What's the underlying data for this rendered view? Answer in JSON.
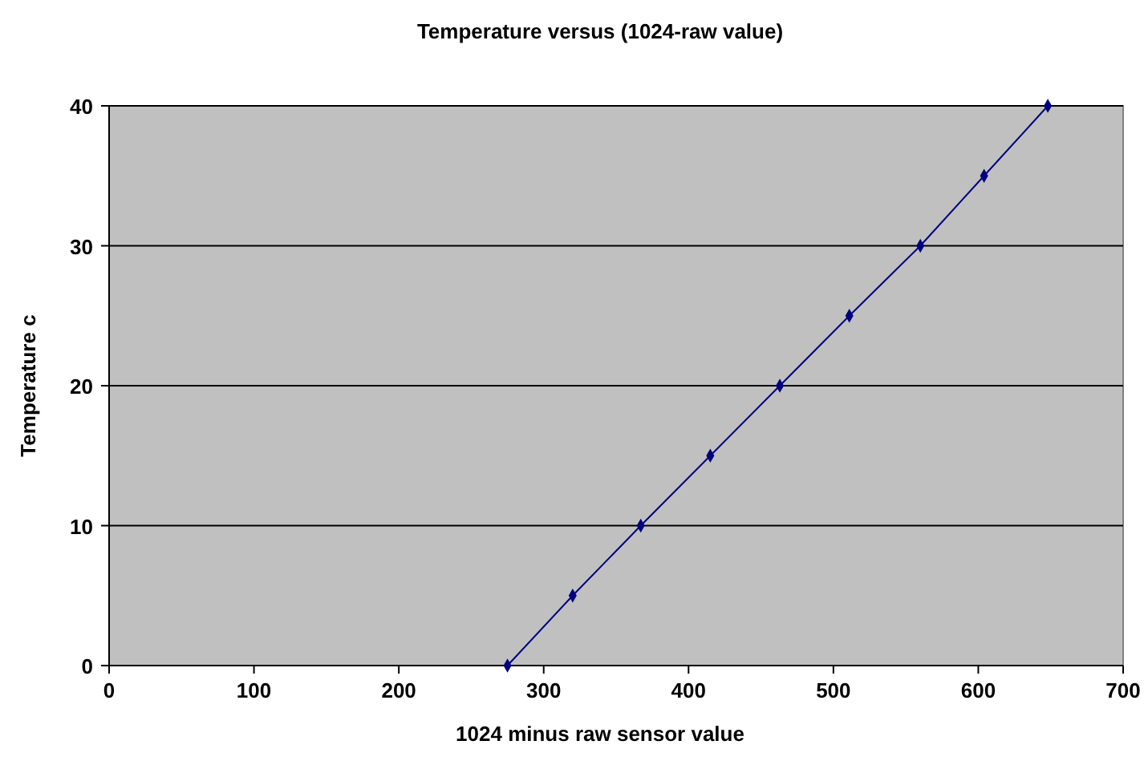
{
  "chart_data": {
    "type": "line",
    "title": "Temperature versus (1024-raw value)",
    "xlabel": "1024 minus raw sensor value",
    "ylabel": "Temperature c",
    "x": [
      275,
      320,
      367,
      415,
      463,
      511,
      560,
      604,
      648
    ],
    "series": [
      {
        "color": "#000080",
        "values": [
          0,
          5,
          10,
          15,
          20,
          25,
          30,
          35,
          40
        ]
      }
    ],
    "xlim": [
      0,
      700
    ],
    "xticks": [
      0,
      100,
      200,
      300,
      400,
      500,
      600,
      700
    ],
    "ylim": [
      0,
      40
    ],
    "yticks": [
      0,
      10,
      20,
      30,
      40
    ],
    "grid": "y",
    "marker": "diamond",
    "line_style": "solid"
  }
}
